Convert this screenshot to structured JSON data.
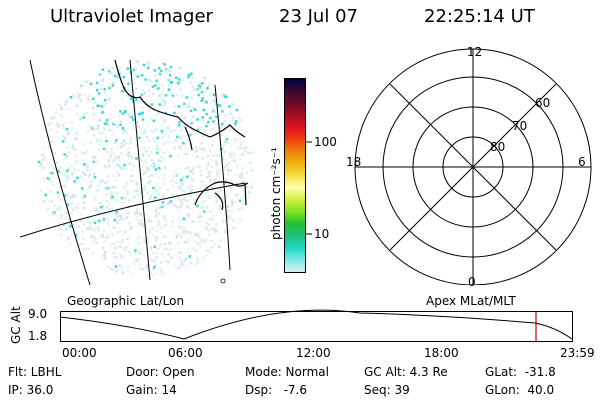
{
  "header": {
    "title": "Ultraviolet Imager",
    "date": "23 Jul 07",
    "time": "22:25:14 UT"
  },
  "geo_panel": {
    "label": "Geographic Lat/Lon",
    "speck_color": "#3fd7d7"
  },
  "colorbar": {
    "axis_label": "photon cm⁻²s⁻¹",
    "tick_labels": [
      "100",
      "10"
    ],
    "colors": [
      "#000040",
      "#3a0a30",
      "#6a0a28",
      "#a01020",
      "#e01020",
      "#f04010",
      "#f08010",
      "#f0b010",
      "#f0e040",
      "#ffffb0",
      "#d0f040",
      "#80e020",
      "#20c030",
      "#20c080",
      "#20d8c0",
      "#80e8e8",
      "#d8f0f0"
    ]
  },
  "polar_panel": {
    "label": "Apex MLat/MLT",
    "mlt_labels": [
      "12",
      "18",
      "6",
      "0"
    ],
    "lat_labels": [
      "60",
      "70",
      "80"
    ]
  },
  "timeline": {
    "axis_label": "GC Alt",
    "y_labels": [
      "9.0",
      "1.8"
    ],
    "x_labels": [
      "00:00",
      "06:00",
      "12:00",
      "18:00",
      "23:59"
    ],
    "cursor_color": "#c00000"
  },
  "info": {
    "filter": "Flt: LBHL",
    "ip": "IP: 36.0",
    "door": "Door: Open",
    "gain": "Gain: 14",
    "mode": "Mode: Normal",
    "dsp": "Dsp:   -7.6",
    "gc_alt": "GC Alt: 4.3 Re",
    "seq": "Seq: 39",
    "glat": "GLat:  -31.8",
    "glon": "GLon:  40.0"
  }
}
